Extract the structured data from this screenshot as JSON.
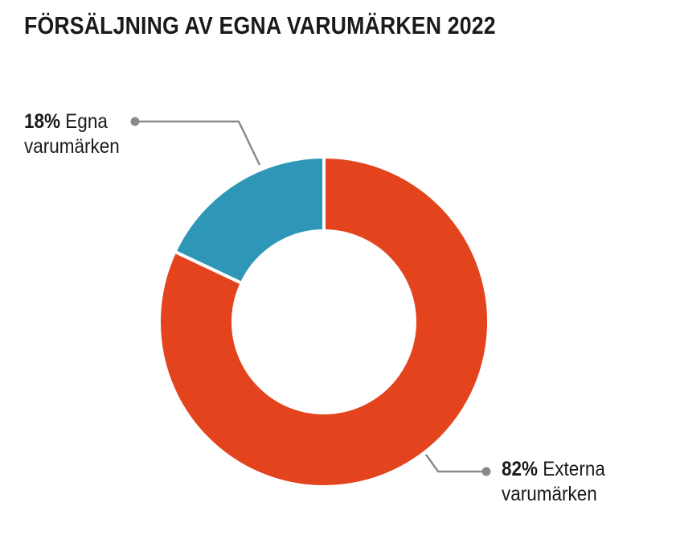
{
  "chart_data": {
    "type": "pie",
    "title": "FÖRSÄLJNING AV EGNA VARUMÄRKEN 2022",
    "donut": true,
    "slices": [
      {
        "label": "Externa varumärken",
        "value": 82,
        "pct_text": "82%",
        "name_line1": "Externa",
        "name_line2": "varumärken",
        "color": "#e3441e"
      },
      {
        "label": "Egna varumärken",
        "value": 18,
        "pct_text": "18%",
        "name_line1": "Egna",
        "name_line2": "varumärken",
        "color": "#2e96b6"
      }
    ]
  },
  "colors": {
    "leader": "#8a8a8a",
    "separator": "#ffffff"
  }
}
